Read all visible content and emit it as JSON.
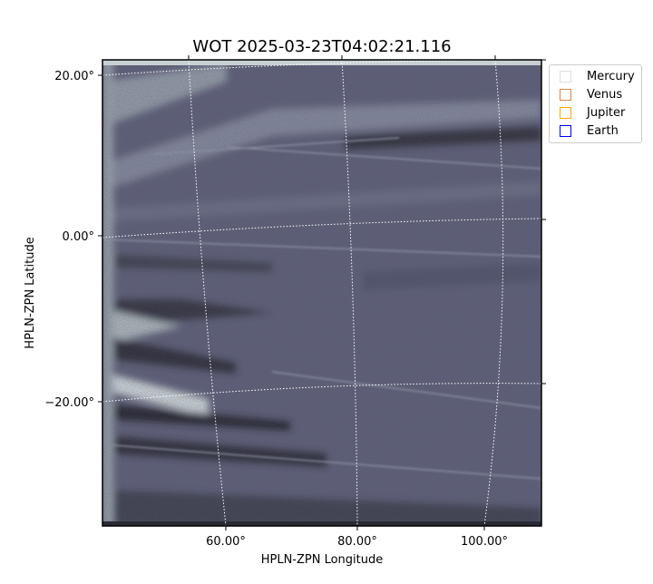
{
  "chart_data": {
    "type": "heatmap",
    "title": "WOT 2025-03-23T04:02:21.116",
    "xlabel": "HPLN-ZPN Longitude",
    "ylabel": "HPLN-ZPN Latitude",
    "x_ticks": [
      "60.00°",
      "80.00°",
      "100.00°"
    ],
    "y_ticks": [
      "20.00°",
      "0.00°",
      "−20.00°"
    ],
    "colormap": "bone",
    "grid": true,
    "legend_position": "outside-top-right",
    "legend": [
      {
        "name": "Mercury",
        "color": "#dddddd"
      },
      {
        "name": "Venus",
        "color": "#d2874b"
      },
      {
        "name": "Jupiter",
        "color": "#ffa500"
      },
      {
        "name": "Earth",
        "color": "#0000ff"
      }
    ]
  }
}
